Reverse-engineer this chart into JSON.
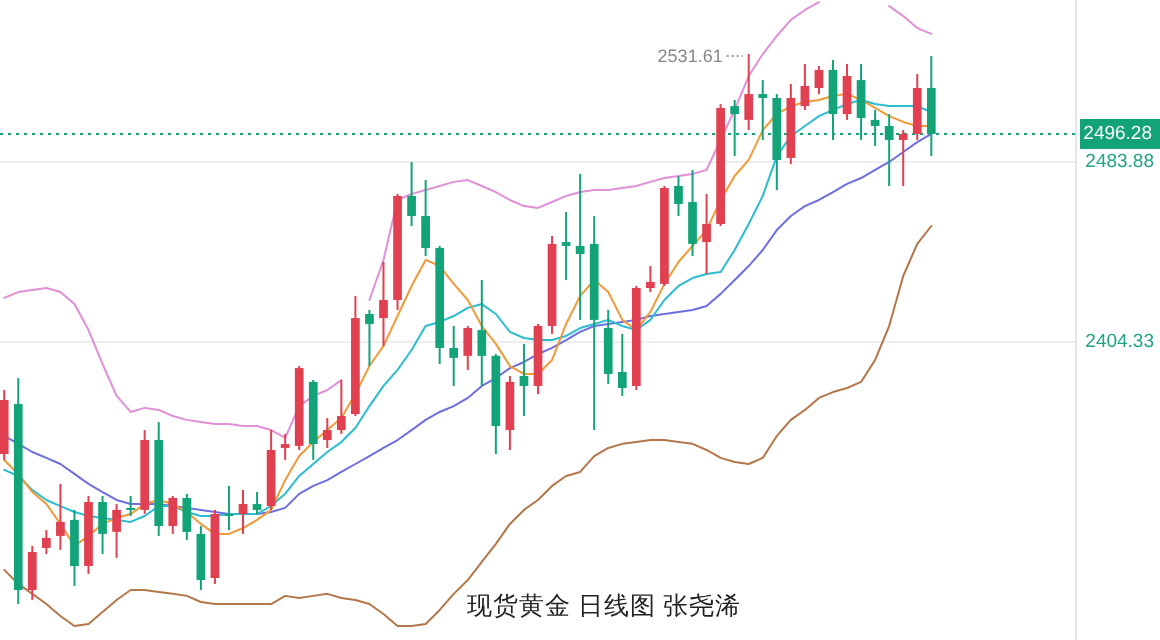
{
  "chart_data": {
    "type": "candlestick",
    "categories": [
      null,
      null,
      null,
      null,
      null,
      null,
      null,
      null,
      null,
      null,
      null,
      null,
      null,
      null,
      null,
      null,
      null,
      null,
      null,
      null,
      null,
      null,
      null,
      null,
      null,
      null,
      null,
      null,
      null,
      null,
      null,
      null,
      null,
      null,
      null,
      null,
      null,
      null,
      null,
      null,
      null,
      null,
      null,
      null,
      null,
      null,
      null,
      null,
      null,
      null,
      null,
      null,
      null,
      null,
      null,
      null,
      null,
      null,
      null,
      null,
      null,
      null,
      null,
      null,
      null,
      null,
      null
    ],
    "ohlc": [
      [
        2354.8,
        2383.1,
        2352.2,
        2378.7
      ],
      [
        2376.9,
        2388.4,
        2288.5,
        2294.7
      ],
      [
        2294.7,
        2314.2,
        2290.3,
        2311.5
      ],
      [
        2313.3,
        2321.2,
        2310.6,
        2317.7
      ],
      [
        2318.6,
        2341.6,
        2312.4,
        2324.8
      ],
      [
        2325.7,
        2330.1,
        2296.5,
        2305.3
      ],
      [
        2305.3,
        2336.3,
        2301.8,
        2333.6
      ],
      [
        2333.6,
        2336.3,
        2310.6,
        2319.5
      ],
      [
        2320.4,
        2332.7,
        2308.9,
        2330.1
      ],
      [
        2331.0,
        2336.3,
        2327.4,
        2330.1
      ],
      [
        2330.1,
        2365.4,
        2328.3,
        2361.0
      ],
      [
        2361.0,
        2368.9,
        2318.6,
        2323.0
      ],
      [
        2323.0,
        2336.3,
        2319.5,
        2335.4
      ],
      [
        2335.4,
        2337.2,
        2316.8,
        2320.4
      ],
      [
        2319.5,
        2323.0,
        2294.7,
        2299.1
      ],
      [
        2300.0,
        2330.1,
        2297.4,
        2328.3
      ],
      [
        2328.3,
        2340.7,
        2321.2,
        2327.4
      ],
      [
        2328.3,
        2338.9,
        2319.5,
        2332.7
      ],
      [
        2332.7,
        2338.0,
        2328.3,
        2330.1
      ],
      [
        2331.8,
        2365.4,
        2330.1,
        2356.6
      ],
      [
        2357.5,
        2363.7,
        2352.2,
        2359.2
      ],
      [
        2358.4,
        2393.7,
        2356.6,
        2392.8
      ],
      [
        2386.7,
        2387.5,
        2352.2,
        2359.2
      ],
      [
        2361.0,
        2370.7,
        2357.5,
        2365.4
      ],
      [
        2365.4,
        2387.5,
        2363.7,
        2371.6
      ],
      [
        2372.5,
        2424.7,
        2371.6,
        2414.9
      ],
      [
        2416.7,
        2418.5,
        2393.7,
        2412.3
      ],
      [
        2414.9,
        2439.7,
        2402.6,
        2422.9
      ],
      [
        2422.9,
        2469.8,
        2418.5,
        2468.9
      ],
      [
        2468.9,
        2483.9,
        2455.6,
        2460.0
      ],
      [
        2460.0,
        2476.0,
        2442.3,
        2445.9
      ],
      [
        2445.9,
        2446.8,
        2394.6,
        2401.7
      ],
      [
        2401.7,
        2411.4,
        2384.9,
        2397.3
      ],
      [
        2398.2,
        2411.4,
        2392.0,
        2410.5
      ],
      [
        2409.6,
        2431.7,
        2384.9,
        2398.2
      ],
      [
        2398.2,
        2399.0,
        2354.8,
        2367.2
      ],
      [
        2365.4,
        2389.3,
        2356.6,
        2386.7
      ],
      [
        2389.3,
        2403.5,
        2371.6,
        2384.9
      ],
      [
        2384.9,
        2412.3,
        2381.3,
        2411.4
      ],
      [
        2411.4,
        2451.2,
        2407.9,
        2447.7
      ],
      [
        2448.5,
        2461.8,
        2431.7,
        2446.8
      ],
      [
        2446.8,
        2478.6,
        2414.1,
        2443.2
      ],
      [
        2447.7,
        2460.0,
        2365.4,
        2414.1
      ],
      [
        2410.5,
        2418.5,
        2385.8,
        2390.2
      ],
      [
        2391.1,
        2407.9,
        2380.5,
        2384.0
      ],
      [
        2384.9,
        2429.1,
        2383.1,
        2428.2
      ],
      [
        2428.2,
        2437.9,
        2426.4,
        2430.9
      ],
      [
        2430.0,
        2473.3,
        2429.1,
        2472.4
      ],
      [
        2473.3,
        2477.7,
        2460.0,
        2465.3
      ],
      [
        2466.2,
        2480.4,
        2442.3,
        2447.7
      ],
      [
        2448.5,
        2469.8,
        2434.4,
        2456.5
      ],
      [
        2456.5,
        2509.5,
        2455.6,
        2507.8
      ],
      [
        2508.6,
        2511.3,
        2486.5,
        2505.1
      ],
      [
        2502.5,
        2531.61,
        2498.0,
        2513.9
      ],
      [
        2513.9,
        2520.1,
        2493.6,
        2512.2
      ],
      [
        2512.2,
        2513.9,
        2471.5,
        2484.8
      ],
      [
        2485.7,
        2518.4,
        2483.0,
        2512.2
      ],
      [
        2508.6,
        2527.2,
        2506.9,
        2517.5
      ],
      [
        2516.6,
        2526.3,
        2513.9,
        2524.6
      ],
      [
        2524.6,
        2529.0,
        2493.6,
        2505.1
      ],
      [
        2505.1,
        2527.2,
        2502.5,
        2521.9
      ],
      [
        2520.1,
        2527.2,
        2493.6,
        2503.3
      ],
      [
        2502.5,
        2506.9,
        2491.0,
        2499.8
      ],
      [
        2499.8,
        2505.1,
        2473.3,
        2493.6
      ],
      [
        2493.6,
        2498.0,
        2473.3,
        2496.3
      ],
      [
        2496.3,
        2522.8,
        2493.6,
        2516.6
      ],
      [
        2516.6,
        2530.7,
        2486.5,
        2496.28
      ]
    ],
    "colors": [
      "#e0404f",
      "#13a378",
      "#e0404f",
      "#e0404f",
      "#e0404f",
      "#13a378",
      "#e0404f",
      "#13a378",
      "#e0404f",
      "#13a378",
      "#e0404f",
      "#13a378",
      "#e0404f",
      "#13a378",
      "#13a378",
      "#e0404f",
      "#13a378",
      "#e0404f",
      "#13a378",
      "#e0404f",
      "#e0404f",
      "#e0404f",
      "#13a378",
      "#e0404f",
      "#e0404f",
      "#e0404f",
      "#13a378",
      "#e0404f",
      "#e0404f",
      "#13a378",
      "#13a378",
      "#13a378",
      "#13a378",
      "#e0404f",
      "#13a378",
      "#13a378",
      "#e0404f",
      "#13a378",
      "#e0404f",
      "#e0404f",
      "#13a378",
      "#13a378",
      "#13a378",
      "#13a378",
      "#13a378",
      "#e0404f",
      "#e0404f",
      "#e0404f",
      "#13a378",
      "#13a378",
      "#e0404f",
      "#e0404f",
      "#13a378",
      "#e0404f",
      "#13a378",
      "#13a378",
      "#e0404f",
      "#e0404f",
      "#e0404f",
      "#13a378",
      "#e0404f",
      "#13a378",
      "#13a378",
      "#13a378",
      "#e0404f",
      "#e0404f",
      "#13a378"
    ],
    "series": [
      {
        "type": "line",
        "color": "#e08fd8",
        "values": [
          2423.8,
          2426.4,
          2427.3,
          2428.2,
          2426.4,
          2421.1,
          2409.6,
          2394.6,
          2380.5,
          2373.4,
          2375.2,
          2374.3,
          2371.6,
          2369.9,
          2369.0,
          2368.1,
          2368.1,
          2367.2,
          2367.2,
          2365.4,
          2361.9,
          2376.0,
          2380.5,
          2383.1,
          2387.5,
          null,
          2422.9,
          2440.6,
          2467.1,
          2469.8,
          2471.5,
          2473.3,
          2475.1,
          2475.9,
          2473.3,
          2470.6,
          2467.1,
          2464.4,
          2463.6,
          2466.2,
          2468.9,
          2470.6,
          2471.5,
          2471.5,
          2472.4,
          2473.3,
          2475.1,
          2476.8,
          2477.7,
          2478.6,
          2480.4,
          2493.6,
          2506.9,
          2521.9,
          2531.6,
          2539.6,
          2546.7,
          2551.1,
          2554.6,
          null,
          null,
          null,
          null,
          2552.8,
          2548.4,
          2543.1,
          2540.5
        ]
      },
      {
        "type": "line",
        "color": "#b5764a",
        "values": [
          2303.6,
          2297.4,
          2293.0,
          2288.5,
          2283.2,
          2278.8,
          2279.7,
          2285.0,
          2290.3,
          2294.7,
          2294.7,
          2293.8,
          2293.0,
          2292.1,
          2289.4,
          2288.5,
          2288.5,
          2288.5,
          2288.5,
          2288.5,
          2292.1,
          2291.2,
          2292.1,
          2293.0,
          2291.2,
          2290.3,
          2288.5,
          2284.1,
          2278.8,
          2278.8,
          2279.7,
          2285.9,
          2293.0,
          2299.1,
          2307.1,
          2315.1,
          2323.9,
          2330.1,
          2334.5,
          2340.7,
          2345.1,
          2346.9,
          2353.9,
          2357.5,
          2359.3,
          2360.1,
          2361.0,
          2361.0,
          2360.1,
          2359.3,
          2356.6,
          2353.1,
          2351.3,
          2350.4,
          2353.1,
          2362.8,
          2369.9,
          2374.3,
          2379.6,
          2382.2,
          2384.0,
          2386.7,
          2396.4,
          2411.4,
          2433.5,
          2447.7,
          2455.6
        ]
      },
      {
        "type": "line",
        "color": "#6d6fe0",
        "values": [
          2362.8,
          2359.3,
          2355.7,
          2353.1,
          2350.4,
          2346.0,
          2341.6,
          2338.0,
          2334.5,
          2332.7,
          2332.7,
          2332.7,
          2331.8,
          2331.0,
          2330.1,
          2329.2,
          2328.3,
          2328.3,
          2328.3,
          2329.2,
          2331.0,
          2337.2,
          2340.7,
          2343.3,
          2346.9,
          2350.4,
          2353.9,
          2357.5,
          2361.0,
          2365.4,
          2369.9,
          2373.4,
          2376.0,
          2379.6,
          2384.9,
          2388.4,
          2392.8,
          2395.5,
          2399.0,
          2401.7,
          2405.2,
          2408.8,
          2411.4,
          2412.3,
          2413.2,
          2414.1,
          2415.8,
          2416.7,
          2417.6,
          2418.5,
          2420.2,
          2425.6,
          2431.7,
          2437.9,
          2445.0,
          2453.8,
          2460.0,
          2464.4,
          2467.1,
          2470.6,
          2474.2,
          2476.8,
          2480.4,
          2483.9,
          2488.3,
          2492.7,
          2496.3
        ]
      },
      {
        "type": "line",
        "color": "#2bbcd0",
        "values": [
          2347.8,
          2345.1,
          2338.9,
          2334.5,
          2331.8,
          2329.2,
          2327.4,
          2326.5,
          2325.7,
          2324.8,
          2327.4,
          2331.8,
          2331.8,
          2329.2,
          2327.4,
          2327.4,
          2328.3,
          2328.3,
          2328.3,
          2331.8,
          2337.2,
          2345.1,
          2350.4,
          2355.7,
          2360.1,
          2366.3,
          2376.0,
          2384.9,
          2392.0,
          2400.8,
          2411.4,
          2413.2,
          2415.8,
          2419.4,
          2421.1,
          2416.7,
          2408.8,
          2406.1,
          2405.2,
          2405.2,
          2407.0,
          2410.5,
          2412.3,
          2414.1,
          2411.4,
          2409.6,
          2414.1,
          2422.9,
          2429.1,
          2432.6,
          2434.4,
          2435.3,
          2445.0,
          2456.5,
          2468.9,
          2486.5,
          2495.4,
          2499.8,
          2504.2,
          2506.9,
          2509.5,
          2511.3,
          2509.5,
          2508.6,
          2508.6,
          2508.6,
          2506.0
        ]
      },
      {
        "type": "line",
        "color": "#f29a38",
        "values": [
          2352.2,
          2346.0,
          2338.0,
          2332.7,
          2323.9,
          2314.2,
          2318.6,
          2323.9,
          2326.5,
          2328.3,
          2332.7,
          2334.5,
          2332.7,
          2329.2,
          2323.9,
          2319.5,
          2319.5,
          2322.1,
          2325.7,
          2330.1,
          2343.3,
          2353.9,
          2360.1,
          2365.4,
          2370.7,
          2381.4,
          2393.7,
          2402.6,
          2415.8,
          2429.1,
          2440.6,
          2437.9,
          2430.0,
          2422.9,
          2411.4,
          2403.5,
          2393.7,
          2390.2,
          2390.2,
          2396.4,
          2412.3,
          2424.7,
          2431.7,
          2426.4,
          2414.1,
          2409.6,
          2417.6,
          2430.0,
          2439.7,
          2446.8,
          2453.8,
          2467.1,
          2477.7,
          2484.8,
          2498.0,
          2505.1,
          2508.6,
          2510.4,
          2511.3,
          2513.1,
          2514.0,
          2511.3,
          2507.8,
          2504.2,
          2501.6,
          2499.8,
          2499.8
        ]
      }
    ],
    "ylim": [
      2272.6,
      2555.5
    ],
    "yticks": [
      2483.88,
      2404.33
    ],
    "grid": "y",
    "ref_lines": [
      {
        "axis": "y",
        "value": 2496.28,
        "label": "2496.28",
        "color": "#13a378",
        "line_style": "dotted"
      }
    ],
    "annotations": [
      "现货黄金 日线图 张尧浠",
      "2531.61"
    ]
  }
}
